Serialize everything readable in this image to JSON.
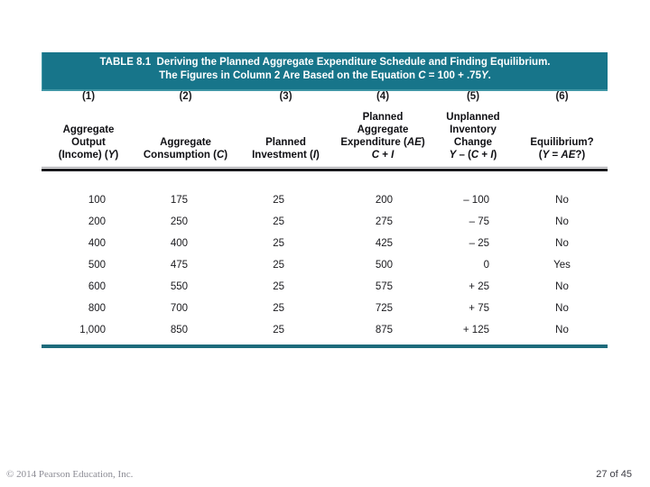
{
  "title_bar": {
    "bg_color": "#17758a",
    "text_color": "#ffffff",
    "line1": "TABLE 8.1  Deriving the Planned Aggregate Expenditure Schedule and Finding Equilibrium.",
    "line2": "The Figures in Column 2 Are Based on the Equation *C* = 100 + .75*Y*."
  },
  "table": {
    "accent_color": "#1d6b7b",
    "column_numbers": [
      "(1)",
      "(2)",
      "(3)",
      "(4)",
      "(5)",
      "(6)"
    ],
    "headers": [
      "Aggregate\nOutput\n(Income) (*Y*)",
      "Aggregate\nConsumption (*C*)",
      "Planned\nInvestment (*I*)",
      "Planned\nAggregate\nExpenditure (*AE*)\n*C* + *I*",
      "Unplanned\nInventory\nChange\n*Y* – (*C* + *I*)",
      "Equilibrium?\n(*Y* = *AE*?)"
    ],
    "rows": [
      [
        "100",
        "175",
        "25",
        "200",
        "– 100",
        "No"
      ],
      [
        "200",
        "250",
        "25",
        "275",
        "– 75",
        "No"
      ],
      [
        "400",
        "400",
        "25",
        "425",
        "– 25",
        "No"
      ],
      [
        "500",
        "475",
        "25",
        "500",
        "0",
        "Yes"
      ],
      [
        "600",
        "550",
        "25",
        "575",
        "+ 25",
        "No"
      ],
      [
        "800",
        "700",
        "25",
        "725",
        "+ 75",
        "No"
      ],
      [
        "1,000",
        "850",
        "25",
        "875",
        "+ 125",
        "No"
      ]
    ]
  },
  "footer": {
    "copyright": "© 2014 Pearson Education, Inc.",
    "page_indicator": "27 of 45"
  }
}
